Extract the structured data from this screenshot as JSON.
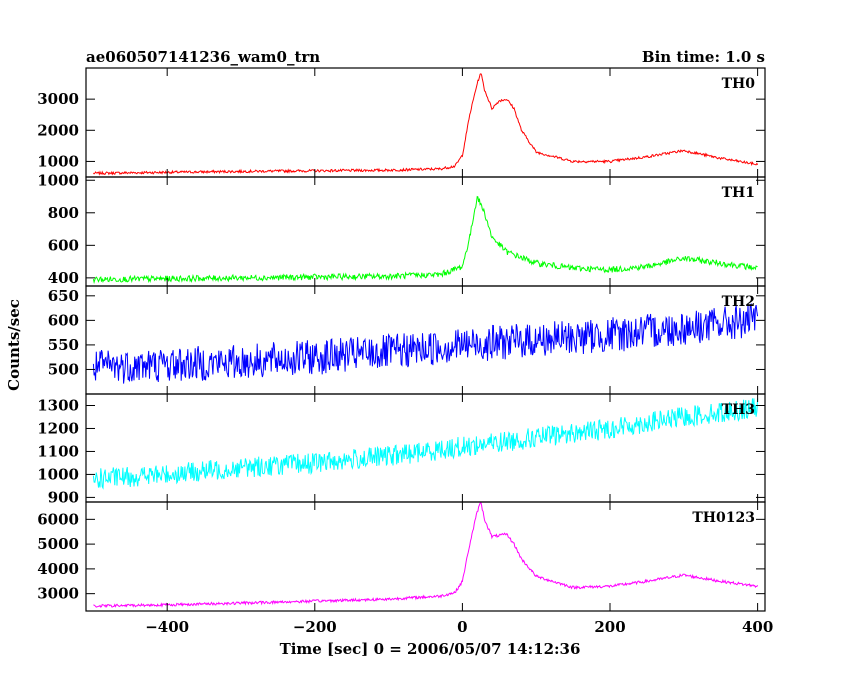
{
  "header": {
    "left_title": "ae060507141236_wam0_trn",
    "right_title": "Bin time: 1.0 s"
  },
  "chart_data": {
    "type": "line",
    "title": "ae060507141236_wam0_trn",
    "subtitle": "Bin time: 1.0 s",
    "xlabel": "Time [sec] 0 = 2006/05/07 14:12:36",
    "ylabel": "Counts/sec",
    "xlim": [
      -510,
      410
    ],
    "x_ticks": [
      -400,
      -200,
      0,
      200,
      400
    ],
    "x_tick_labels": [
      "−400",
      "−200",
      "0",
      "200",
      "400"
    ],
    "grid": false,
    "panels": [
      {
        "name": "TH0",
        "color": "#ff0000",
        "ylim": [
          500,
          4000
        ],
        "y_ticks": [
          1000,
          2000,
          3000
        ],
        "y_tick_labels": [
          "1000",
          "2000",
          "3000"
        ],
        "x": [
          -500,
          -400,
          -300,
          -200,
          -100,
          -30,
          -10,
          0,
          10,
          20,
          25,
          30,
          40,
          50,
          60,
          70,
          80,
          100,
          150,
          200,
          250,
          300,
          350,
          400
        ],
        "y": [
          620,
          650,
          680,
          700,
          720,
          760,
          850,
          1200,
          2500,
          3500,
          3850,
          3300,
          2700,
          2950,
          3000,
          2700,
          2000,
          1300,
          1000,
          1000,
          1150,
          1350,
          1100,
          900
        ]
      },
      {
        "name": "TH1",
        "color": "#00ff00",
        "ylim": [
          350,
          1020
        ],
        "y_ticks": [
          400,
          600,
          800,
          1000
        ],
        "y_tick_labels": [
          "400",
          "600",
          "800",
          "1000"
        ],
        "x": [
          -500,
          -300,
          -100,
          -30,
          0,
          10,
          20,
          30,
          40,
          60,
          100,
          150,
          200,
          250,
          300,
          350,
          400
        ],
        "y": [
          390,
          400,
          410,
          420,
          470,
          650,
          900,
          800,
          650,
          560,
          490,
          460,
          450,
          470,
          520,
          490,
          460
        ]
      },
      {
        "name": "TH2",
        "color": "#0000ff",
        "ylim": [
          450,
          670
        ],
        "y_ticks": [
          500,
          550,
          600,
          650
        ],
        "y_tick_labels": [
          "500",
          "550",
          "600",
          "650"
        ],
        "x": [
          -500,
          -400,
          -300,
          -200,
          -100,
          0,
          100,
          200,
          300,
          400
        ],
        "y": [
          505,
          510,
          515,
          525,
          535,
          550,
          560,
          570,
          585,
          600
        ]
      },
      {
        "name": "TH3",
        "color": "#00ffff",
        "ylim": [
          880,
          1350
        ],
        "y_ticks": [
          900,
          1000,
          1100,
          1200,
          1300
        ],
        "y_tick_labels": [
          "900",
          "1000",
          "1100",
          "1200",
          "1300"
        ],
        "x": [
          -500,
          -400,
          -300,
          -200,
          -100,
          0,
          100,
          200,
          300,
          400
        ],
        "y": [
          980,
          1000,
          1030,
          1050,
          1080,
          1120,
          1160,
          1200,
          1250,
          1290
        ]
      },
      {
        "name": "TH0123",
        "color": "#ff00ff",
        "ylim": [
          2300,
          6700
        ],
        "y_ticks": [
          3000,
          4000,
          5000,
          6000
        ],
        "y_tick_labels": [
          "3000",
          "4000",
          "5000",
          "6000"
        ],
        "x": [
          -500,
          -400,
          -300,
          -200,
          -100,
          -30,
          -10,
          0,
          10,
          20,
          25,
          30,
          40,
          50,
          60,
          70,
          80,
          100,
          150,
          200,
          250,
          300,
          350,
          400
        ],
        "y": [
          2500,
          2550,
          2620,
          2700,
          2780,
          2900,
          3050,
          3500,
          5000,
          6300,
          6700,
          6000,
          5300,
          5350,
          5400,
          5000,
          4400,
          3700,
          3250,
          3300,
          3500,
          3750,
          3500,
          3300
        ]
      }
    ]
  }
}
